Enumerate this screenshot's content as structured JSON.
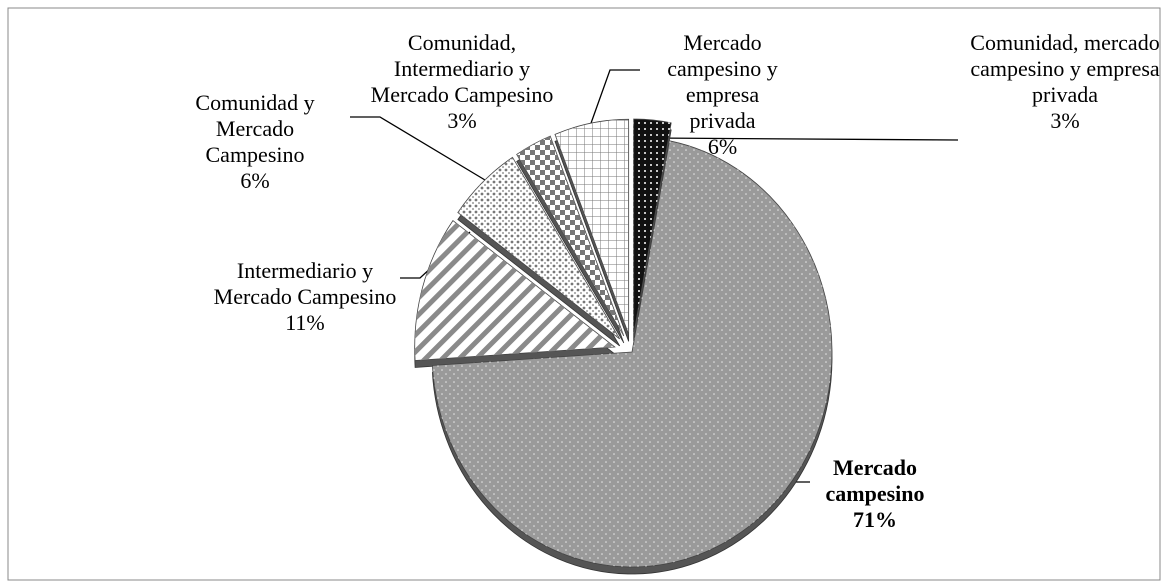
{
  "chart_data": {
    "type": "pie",
    "categories": [
      "Comunidad, mercado campesino y empresa privada",
      "Mercado campesino",
      "Intermediario y Mercado Campesino",
      "Comunidad y Mercado Campesino",
      "Comunidad, Intermediario y Mercado Campesino",
      "Mercado campesino y empresa privada"
    ],
    "values": [
      3,
      71,
      11,
      6,
      3,
      6
    ],
    "value_labels": [
      "3%",
      "71%",
      "11%",
      "6%",
      "3%",
      "6%"
    ],
    "colors": [
      "#111111",
      "#9a9a9a",
      "#ffffff",
      "#ffffff",
      "#ffffff",
      "#ffffff"
    ]
  }
}
